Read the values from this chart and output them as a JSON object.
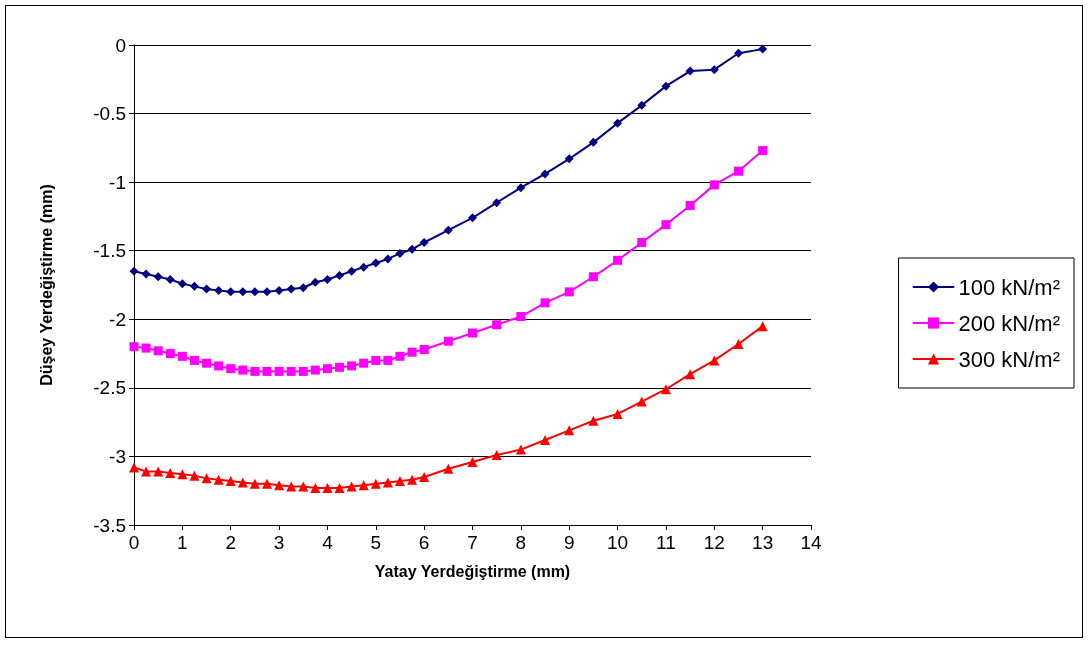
{
  "chart_data": {
    "type": "line",
    "xlabel": "Yatay Yerdeğiştirme (mm)",
    "ylabel": "Düşey Yerdeğiştirme (mm)",
    "x": [
      0,
      0.25,
      0.5,
      0.75,
      1,
      1.25,
      1.5,
      1.75,
      2,
      2.25,
      2.5,
      2.75,
      3,
      3.25,
      3.5,
      3.75,
      4,
      4.25,
      4.5,
      4.75,
      5,
      5.25,
      5.5,
      5.75,
      6,
      6.5,
      7,
      7.5,
      8,
      8.5,
      9,
      9.5,
      10,
      10.5,
      11,
      11.5,
      12,
      12.5,
      13
    ],
    "series": [
      {
        "name": "100 kN/m²",
        "color": "#000080",
        "marker": "diamond",
        "values": [
          -1.65,
          -1.67,
          -1.69,
          -1.71,
          -1.74,
          -1.76,
          -1.78,
          -1.79,
          -1.8,
          -1.8,
          -1.8,
          -1.8,
          -1.79,
          -1.78,
          -1.77,
          -1.73,
          -1.71,
          -1.68,
          -1.65,
          -1.62,
          -1.59,
          -1.56,
          -1.52,
          -1.49,
          -1.44,
          -1.35,
          -1.26,
          -1.15,
          -1.04,
          -0.94,
          -0.83,
          -0.71,
          -0.57,
          -0.44,
          -0.3,
          -0.19,
          -0.18,
          -0.06,
          -0.03
        ]
      },
      {
        "name": "200 kN/m²",
        "color": "#ff00ff",
        "marker": "square",
        "values": [
          -2.2,
          -2.21,
          -2.23,
          -2.25,
          -2.27,
          -2.3,
          -2.32,
          -2.34,
          -2.36,
          -2.37,
          -2.38,
          -2.38,
          -2.38,
          -2.38,
          -2.38,
          -2.37,
          -2.36,
          -2.35,
          -2.34,
          -2.32,
          -2.3,
          -2.3,
          -2.27,
          -2.24,
          -2.22,
          -2.16,
          -2.1,
          -2.04,
          -1.98,
          -1.88,
          -1.8,
          -1.69,
          -1.57,
          -1.44,
          -1.31,
          -1.17,
          -1.02,
          -0.92,
          -0.77
        ]
      },
      {
        "name": "300 kN/m²",
        "color": "#ff0000",
        "marker": "triangle",
        "values": [
          -3.08,
          -3.11,
          -3.11,
          -3.12,
          -3.13,
          -3.14,
          -3.16,
          -3.17,
          -3.18,
          -3.19,
          -3.2,
          -3.2,
          -3.21,
          -3.22,
          -3.22,
          -3.23,
          -3.23,
          -3.23,
          -3.22,
          -3.21,
          -3.2,
          -3.19,
          -3.18,
          -3.17,
          -3.15,
          -3.09,
          -3.04,
          -2.99,
          -2.95,
          -2.88,
          -2.81,
          -2.74,
          -2.69,
          -2.6,
          -2.51,
          -2.4,
          -2.3,
          -2.18,
          -2.05
        ]
      }
    ],
    "xlim": [
      0,
      14
    ],
    "xticks": [
      0,
      1,
      2,
      3,
      4,
      5,
      6,
      7,
      8,
      9,
      10,
      11,
      12,
      13,
      14
    ],
    "ylim": [
      -3.5,
      0
    ],
    "yticks": [
      -3.5,
      -3,
      -2.5,
      -2,
      -1.5,
      -1,
      -0.5,
      0
    ],
    "grid": "y",
    "legend": "right",
    "line_style": "solid"
  }
}
